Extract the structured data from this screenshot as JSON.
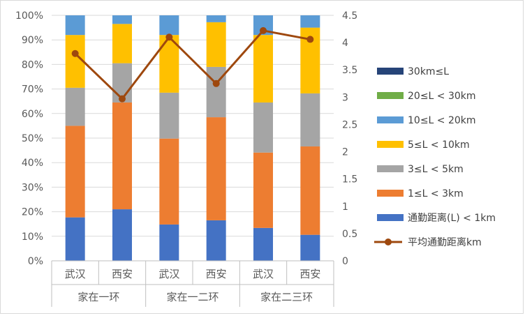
{
  "chart_data": {
    "type": "bar",
    "stacked": true,
    "categories": [
      "武汉",
      "西安",
      "武汉",
      "西安",
      "武汉",
      "西安"
    ],
    "groups": [
      "家在一环",
      "家在一二环",
      "家在二三环"
    ],
    "y_left": {
      "ticks": [
        "0%",
        "10%",
        "20%",
        "30%",
        "40%",
        "50%",
        "60%",
        "70%",
        "80%",
        "90%",
        "100%"
      ],
      "ylim": [
        0,
        100
      ]
    },
    "y_right": {
      "ticks": [
        "0",
        "0.5",
        "1",
        "1.5",
        "2",
        "2.5",
        "3",
        "3.5",
        "4",
        "4.5"
      ],
      "ylim": [
        0,
        4.5
      ]
    },
    "grid": true,
    "legend_position": "right",
    "series": [
      {
        "name": "通勤距离(L) < 1km",
        "color": "#4472c4",
        "values": [
          17.7,
          21.0,
          14.8,
          16.5,
          13.4,
          10.6
        ]
      },
      {
        "name": "1≤L < 3km",
        "color": "#ed7d31",
        "values": [
          37.3,
          43.5,
          35.0,
          42.0,
          30.7,
          36.0
        ]
      },
      {
        "name": "3≤L < 5km",
        "color": "#a5a5a5",
        "values": [
          15.5,
          16.0,
          18.7,
          20.5,
          20.4,
          21.6
        ]
      },
      {
        "name": "5≤L < 10km",
        "color": "#ffc000",
        "values": [
          21.5,
          16.0,
          23.5,
          18.2,
          27.5,
          26.8
        ]
      },
      {
        "name": "10≤L < 20km",
        "color": "#5b9bd5",
        "values": [
          8.0,
          3.5,
          8.0,
          2.8,
          8.0,
          5.0
        ]
      },
      {
        "name": "20≤L < 30km",
        "color": "#70ad47",
        "values": [
          0,
          0,
          0,
          0,
          0,
          0
        ]
      },
      {
        "name": "30km≤L",
        "color": "#264478",
        "values": [
          0,
          0,
          0,
          0,
          0,
          0
        ]
      }
    ],
    "line_series": {
      "name": "平均通勤距离km",
      "color": "#9e480e",
      "values": [
        3.8,
        2.97,
        4.1,
        3.25,
        4.22,
        4.06
      ]
    },
    "legend_order": [
      "30km≤L",
      "20≤L < 30km",
      "10≤L < 20km",
      "5≤L < 10km",
      "3≤L < 5km",
      "1≤L < 3km",
      "通勤距离(L) < 1km",
      "平均通勤距离km"
    ]
  }
}
